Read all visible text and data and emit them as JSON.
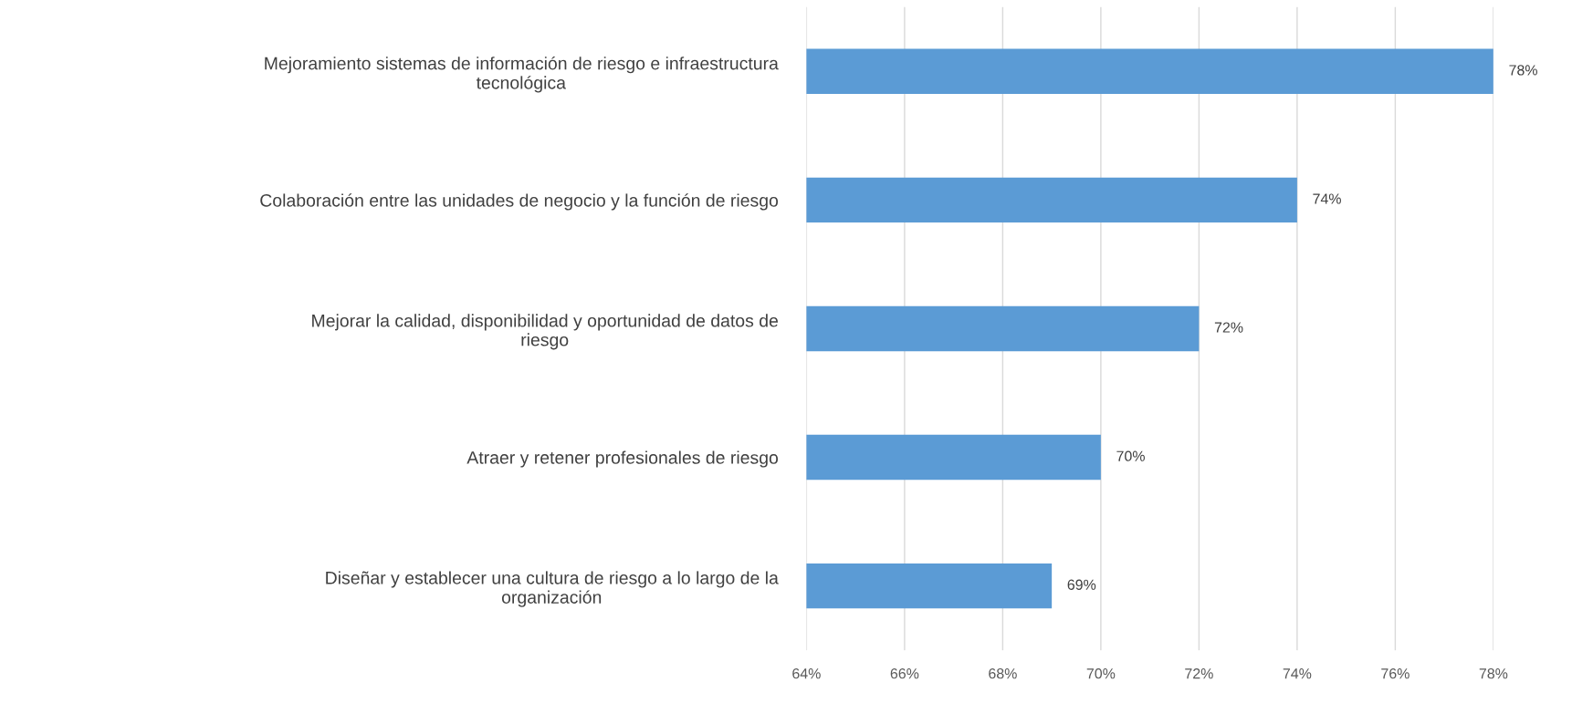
{
  "chart_data": {
    "type": "bar",
    "orientation": "horizontal",
    "categories": [
      "Mejoramiento sistemas de información de riesgo e infraestructura tecnológica",
      "Colaboración entre las unidades de negocio y la función de riesgo",
      "Mejorar la calidad, disponibilidad y oportunidad de datos de riesgo",
      "Atraer y retener profesionales de riesgo",
      "Diseñar y establecer una cultura de riesgo a lo largo de la organización"
    ],
    "values": [
      78,
      74,
      72,
      70,
      69
    ],
    "value_labels": [
      "78%",
      "74%",
      "72%",
      "70%",
      "69%"
    ],
    "color": "#5b9bd5",
    "xlim": [
      64,
      78
    ],
    "xticks": [
      {
        "value": 64,
        "label": "64%"
      },
      {
        "value": 66,
        "label": "66%"
      },
      {
        "value": 68,
        "label": "68%"
      },
      {
        "value": 70,
        "label": "70%"
      },
      {
        "value": 72,
        "label": "72%"
      },
      {
        "value": 74,
        "label": "74%"
      },
      {
        "value": 76,
        "label": "76%"
      },
      {
        "value": 78,
        "label": "78%"
      }
    ],
    "grid": "x",
    "legend": false
  }
}
